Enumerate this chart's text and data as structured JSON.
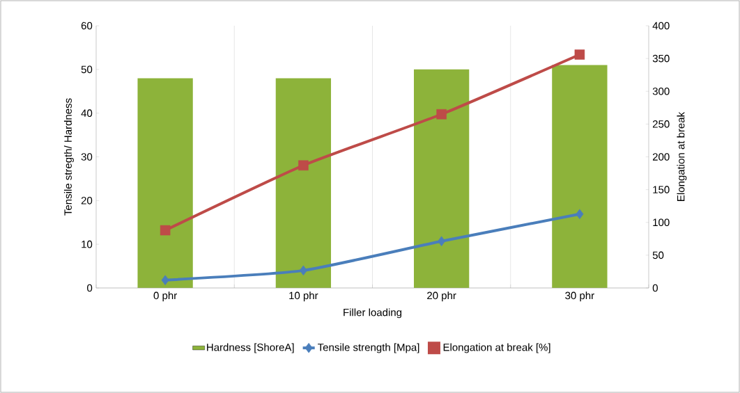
{
  "chart_data": {
    "type": "bar",
    "xlabel": "Filler loading",
    "ylabel": "Tensile stregth/ Hardness",
    "y2label": "Elongation at break",
    "categories": [
      "0 phr",
      "10 phr",
      "20 phr",
      "30 phr"
    ],
    "series": [
      {
        "name": "Hardness [ShoreA]",
        "color": "#8db33a",
        "values": [
          48,
          48,
          50,
          51
        ]
      },
      {
        "name": "Tensile strength [Mpa]",
        "type": "line",
        "color": "#4a7ebb",
        "marker": "diamond",
        "values": [
          1.8,
          4,
          10.7,
          16.9
        ]
      },
      {
        "name": "Elongation at break [%]",
        "type": "line",
        "color": "#be4b48",
        "marker": "square",
        "axis": "y2",
        "values": [
          88,
          187,
          265,
          356
        ]
      }
    ],
    "ylim": [
      0,
      60
    ],
    "yticks": [
      0,
      10,
      20,
      30,
      40,
      50,
      60
    ],
    "y2lim": [
      0,
      400
    ],
    "y2ticks": [
      0,
      50,
      100,
      150,
      200,
      250,
      300,
      350,
      400
    ],
    "grid": "x",
    "legend": "bottom"
  }
}
